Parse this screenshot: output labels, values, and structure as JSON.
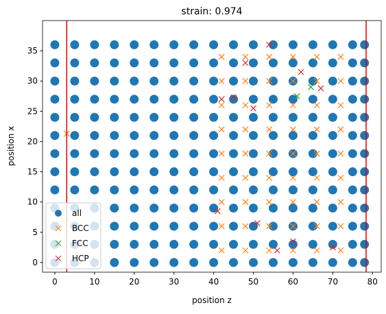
{
  "chart_data": {
    "type": "scatter",
    "title": "strain: 0.974",
    "xlabel": "position z",
    "ylabel": "position x",
    "xlim": [
      -3.1,
      82.2
    ],
    "ylim": [
      -1.6,
      40
    ],
    "xticks": [
      0,
      10,
      20,
      30,
      40,
      50,
      60,
      70,
      80
    ],
    "yticks": [
      0,
      5,
      10,
      15,
      20,
      25,
      30,
      35
    ],
    "vlines": [
      3,
      78.4
    ],
    "vline_color": "#e00000",
    "legend": "lower left",
    "series": [
      {
        "name": "all",
        "marker": "o",
        "color": "#1f77b4",
        "x": [
          0,
          5,
          10,
          15,
          20,
          25,
          30,
          35,
          40,
          45,
          50,
          55,
          60,
          65,
          70,
          75,
          78,
          0,
          5,
          10,
          15,
          20,
          25,
          30,
          35,
          40,
          45,
          50,
          55,
          60,
          65,
          70,
          75,
          78,
          0,
          5,
          10,
          15,
          20,
          25,
          30,
          35,
          40,
          45,
          50,
          55,
          60,
          65,
          70,
          75,
          78,
          0,
          5,
          10,
          15,
          20,
          25,
          30,
          35,
          40,
          45,
          50,
          55,
          60,
          65,
          70,
          75,
          78,
          0,
          5,
          10,
          15,
          20,
          25,
          30,
          35,
          40,
          45,
          50,
          55,
          60,
          65,
          70,
          75,
          78,
          0,
          5,
          10,
          15,
          20,
          25,
          30,
          35,
          40,
          45,
          50,
          55,
          60,
          65,
          70,
          75,
          78,
          0,
          5,
          10,
          15,
          20,
          25,
          30,
          35,
          40,
          45,
          50,
          55,
          60,
          65,
          70,
          75,
          78,
          0,
          5,
          10,
          15,
          20,
          25,
          30,
          35,
          40,
          45,
          50,
          55,
          60,
          65,
          70,
          75,
          78,
          0,
          5,
          10,
          15,
          20,
          25,
          30,
          35,
          40,
          45,
          50,
          55,
          60,
          65,
          70,
          75,
          78,
          0,
          5,
          10,
          15,
          20,
          25,
          30,
          35,
          40,
          45,
          50,
          55,
          60,
          65,
          70,
          75,
          78,
          0,
          5,
          10,
          15,
          20,
          25,
          30,
          35,
          40,
          45,
          50,
          55,
          60,
          65,
          70,
          75,
          78,
          0,
          5,
          10,
          15,
          20,
          25,
          30,
          35,
          40,
          45,
          50,
          55,
          60,
          65,
          70,
          75,
          78,
          0,
          5,
          10,
          15,
          20,
          25,
          30,
          35,
          40,
          45,
          50,
          55,
          60,
          65,
          70,
          75,
          78
        ],
        "values": [
          0,
          0,
          0,
          0,
          0,
          0,
          0,
          0,
          0,
          0,
          0,
          0,
          0,
          0,
          0,
          0,
          0,
          3,
          3,
          3,
          3,
          3,
          3,
          3,
          3,
          3,
          3,
          3,
          3,
          3,
          3,
          3,
          3,
          3,
          6,
          6,
          6,
          6,
          6,
          6,
          6,
          6,
          6,
          6,
          6,
          6,
          6,
          6,
          6,
          6,
          6,
          9,
          9,
          9,
          9,
          9,
          9,
          9,
          9,
          9,
          9,
          9,
          9,
          9,
          9,
          9,
          9,
          9,
          12,
          12,
          12,
          12,
          12,
          12,
          12,
          12,
          12,
          12,
          12,
          12,
          12,
          12,
          12,
          12,
          12,
          15,
          15,
          15,
          15,
          15,
          15,
          15,
          15,
          15,
          15,
          15,
          15,
          15,
          15,
          15,
          15,
          15,
          18,
          18,
          18,
          18,
          18,
          18,
          18,
          18,
          18,
          18,
          18,
          18,
          18,
          18,
          18,
          18,
          18,
          21,
          21,
          21,
          21,
          21,
          21,
          21,
          21,
          21,
          21,
          21,
          21,
          21,
          21,
          21,
          21,
          21,
          24,
          24,
          24,
          24,
          24,
          24,
          24,
          24,
          24,
          24,
          24,
          24,
          24,
          24,
          24,
          24,
          24,
          27,
          27,
          27,
          27,
          27,
          27,
          27,
          27,
          27,
          27,
          27,
          27,
          27,
          27,
          27,
          27,
          27,
          30,
          30,
          30,
          30,
          30,
          30,
          30,
          30,
          30,
          30,
          30,
          30,
          30,
          30,
          30,
          30,
          30,
          33,
          33,
          33,
          33,
          33,
          33,
          33,
          33,
          33,
          33,
          33,
          33,
          33,
          33,
          33,
          33,
          33,
          36,
          36,
          36,
          36,
          36,
          36,
          36,
          36,
          36,
          36,
          36,
          36,
          36,
          36,
          36,
          36,
          36
        ]
      },
      {
        "name": "BCC",
        "marker": "x",
        "color": "#ff7f0e",
        "x": [
          42,
          48,
          54,
          60,
          66,
          72,
          42,
          48,
          54,
          60,
          66,
          72,
          42,
          48,
          54,
          60,
          66,
          72,
          42,
          48,
          54,
          60,
          66,
          72,
          42,
          48,
          54,
          60,
          66,
          72,
          42,
          48,
          54,
          60,
          66,
          72,
          42,
          48,
          54,
          60,
          66,
          72,
          42,
          48,
          54,
          60,
          66,
          72,
          42,
          48,
          54,
          60,
          66,
          72,
          3
        ],
        "values": [
          2,
          2,
          2,
          2,
          2,
          2,
          6,
          6,
          6,
          6,
          6,
          6,
          10,
          10,
          10,
          10,
          10,
          10,
          14,
          14,
          14,
          14,
          14,
          14,
          18,
          18,
          18,
          18,
          18,
          18,
          22,
          22,
          22,
          22,
          22,
          22,
          26,
          26,
          26,
          26,
          26,
          26,
          30,
          30,
          30,
          30,
          30,
          30,
          34,
          34,
          34,
          34,
          34,
          34,
          21.3
        ]
      },
      {
        "name": "FCC",
        "marker": "x",
        "color": "#2ca02c",
        "x": [
          64.5,
          61
        ],
        "values": [
          29,
          27.5
        ]
      },
      {
        "name": "HCP",
        "marker": "x",
        "color": "#d62728",
        "x": [
          48,
          54,
          62,
          67,
          42,
          50,
          56,
          60,
          70,
          51,
          41,
          45
        ],
        "values": [
          33,
          36,
          31.5,
          28.8,
          27,
          25.5,
          2,
          3.5,
          2.5,
          6.5,
          8.5,
          27.3
        ]
      }
    ]
  }
}
